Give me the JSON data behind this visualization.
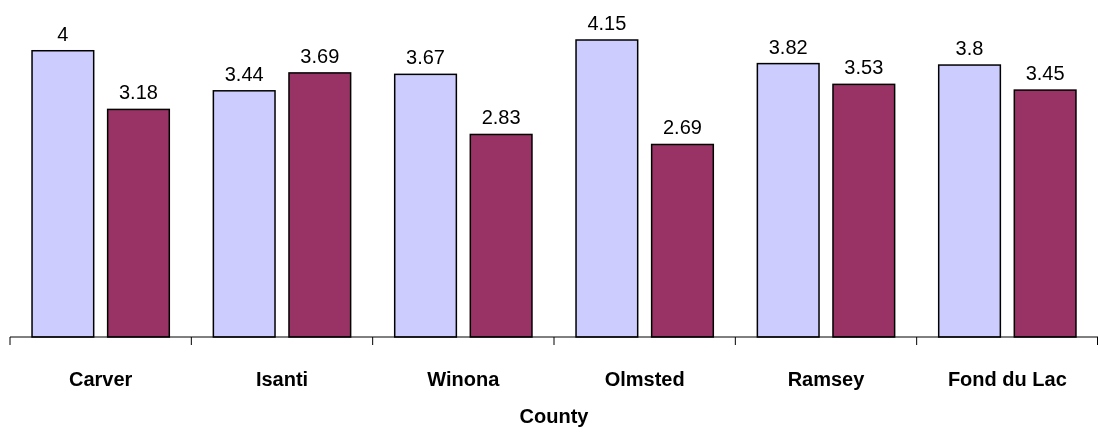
{
  "chart_data": {
    "type": "bar",
    "xlabel": "County",
    "categories": [
      "Carver",
      "Isanti",
      "Winona",
      "Olmsted",
      "Ramsey",
      "Fond du Lac"
    ],
    "series": [
      {
        "color": "#ccccff",
        "values": [
          4,
          3.44,
          3.67,
          4.15,
          3.82,
          3.8
        ]
      },
      {
        "color": "#993366",
        "values": [
          3.18,
          3.69,
          2.83,
          2.69,
          3.53,
          3.45
        ]
      }
    ],
    "tick_labels": "x",
    "data_labels": true
  }
}
